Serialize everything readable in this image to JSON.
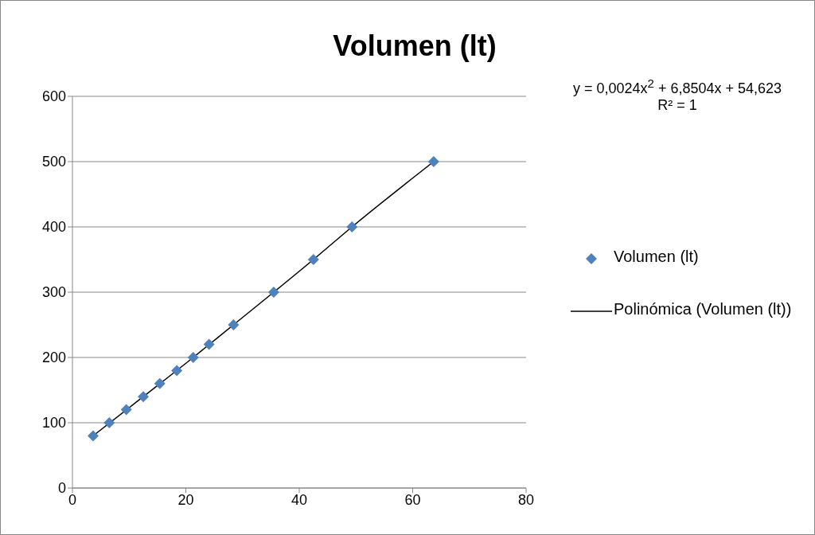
{
  "chart_data": {
    "type": "scatter",
    "title": "Volumen (lt)",
    "annotations": [
      "y = 0,0024x$^{2}$ + 6,8504x + 54,623",
      "R² = 1"
    ],
    "xlim": [
      0,
      80
    ],
    "xticks": [
      0,
      20,
      40,
      60,
      80
    ],
    "ylim": [
      0,
      600
    ],
    "yticks": [
      0,
      100,
      200,
      300,
      400,
      500,
      600
    ],
    "grid": "y",
    "legend": "right",
    "marker": "diamond",
    "series": [
      {
        "name": "Volumen (lt)",
        "color": "#4f81bd",
        "x": [
          3.65,
          6.5,
          9.5,
          12.5,
          15.4,
          18.4,
          21.3,
          24.1,
          28.4,
          35.5,
          42.5,
          49.3,
          63.7
        ],
        "values": [
          80,
          100,
          120,
          140,
          160,
          180,
          200,
          220,
          250,
          300,
          350,
          400,
          500
        ]
      },
      {
        "name": "Polinómica (Volumen (lt))",
        "type": "line",
        "color": "#000000",
        "marker": "none",
        "x": [
          3.65,
          12.5,
          21.3,
          28.4,
          35.5,
          42.5,
          49.3,
          63.7
        ],
        "values": [
          80,
          140,
          200,
          250,
          300,
          350,
          400,
          500
        ]
      }
    ]
  }
}
